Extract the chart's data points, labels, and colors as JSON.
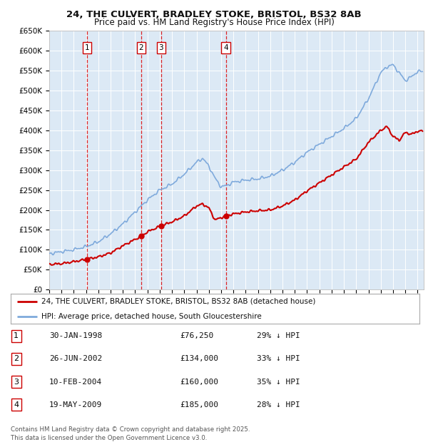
{
  "title_line1": "24, THE CULVERT, BRADLEY STOKE, BRISTOL, BS32 8AB",
  "title_line2": "Price paid vs. HM Land Registry's House Price Index (HPI)",
  "background_color": "#ffffff",
  "plot_bg_color": "#dce9f5",
  "grid_color": "#ffffff",
  "hpi_color": "#7faadc",
  "sale_color": "#cc0000",
  "ylim": [
    0,
    650000
  ],
  "yticks": [
    0,
    50000,
    100000,
    150000,
    200000,
    250000,
    300000,
    350000,
    400000,
    450000,
    500000,
    550000,
    600000,
    650000
  ],
  "ytick_labels": [
    "£0",
    "£50K",
    "£100K",
    "£150K",
    "£200K",
    "£250K",
    "£300K",
    "£350K",
    "£400K",
    "£450K",
    "£500K",
    "£550K",
    "£600K",
    "£650K"
  ],
  "sale_dates": [
    1998.08,
    2002.49,
    2004.11,
    2009.38
  ],
  "sale_prices": [
    76250,
    134000,
    160000,
    185000
  ],
  "sale_labels": [
    "1",
    "2",
    "3",
    "4"
  ],
  "legend_sale_label": "24, THE CULVERT, BRADLEY STOKE, BRISTOL, BS32 8AB (detached house)",
  "legend_hpi_label": "HPI: Average price, detached house, South Gloucestershire",
  "table_data": [
    [
      "1",
      "30-JAN-1998",
      "£76,250",
      "29% ↓ HPI"
    ],
    [
      "2",
      "26-JUN-2002",
      "£134,000",
      "33% ↓ HPI"
    ],
    [
      "3",
      "10-FEB-2004",
      "£160,000",
      "35% ↓ HPI"
    ],
    [
      "4",
      "19-MAY-2009",
      "£185,000",
      "28% ↓ HPI"
    ]
  ],
  "footnote": "Contains HM Land Registry data © Crown copyright and database right 2025.\nThis data is licensed under the Open Government Licence v3.0."
}
